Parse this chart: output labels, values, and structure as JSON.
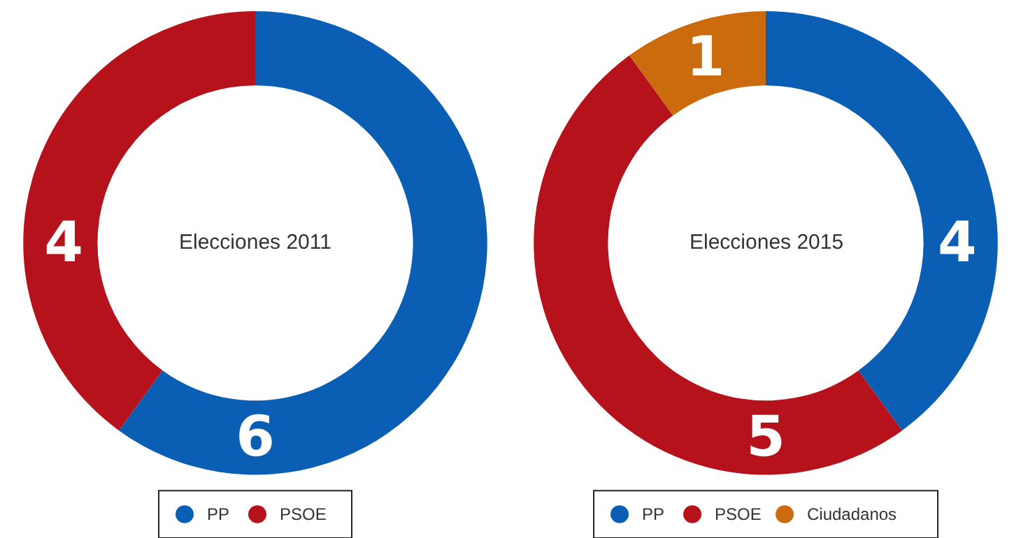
{
  "chart_data": [
    {
      "type": "donut",
      "title": "Elecciones 2011",
      "categories": [
        "PP",
        "PSOE"
      ],
      "values": [
        6,
        4
      ],
      "colors": [
        "#0a5fb4",
        "#b5121b"
      ],
      "data_labels": true,
      "legend": "bottom"
    },
    {
      "type": "donut",
      "title": "Elecciones 2015",
      "categories": [
        "PP",
        "PSOE",
        "Ciudadanos"
      ],
      "values": [
        4,
        5,
        1
      ],
      "colors": [
        "#0a5fb4",
        "#b5121b",
        "#cc6a0e"
      ],
      "data_labels": true,
      "legend": "bottom"
    }
  ]
}
